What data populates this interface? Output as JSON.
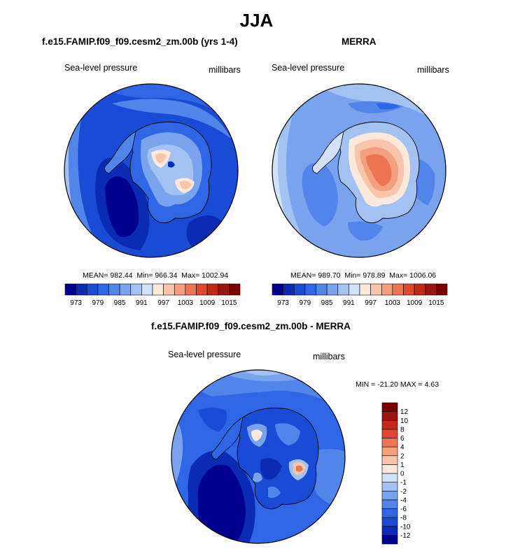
{
  "page_title": "JJA",
  "chart_data": [
    {
      "type": "heatmap",
      "projection": "south polar stereographic",
      "title": "f.e15.FAMIP.f09_f09.cesm2_zm.00b (yrs 1-4)",
      "left_label": "Sea-level pressure",
      "right_label": "millibars",
      "stats": {
        "mean_text": "MEAN= 982.44",
        "min_text": "Min= 966.34",
        "max_text": "Max= 1002.94",
        "mean": 982.44,
        "min": 966.34,
        "max": 1002.94
      },
      "colorbar": {
        "orientation": "horizontal",
        "levels": [
          973,
          976,
          979,
          982,
          985,
          988,
          991,
          994,
          997,
          1000,
          1003,
          1006,
          1009,
          1012,
          1015
        ],
        "tick_labels": [
          "973",
          "979",
          "985",
          "991",
          "997",
          "1003",
          "1009",
          "1015"
        ],
        "colors": [
          "#00008f",
          "#0a2bb4",
          "#1a4bd4",
          "#2e66e6",
          "#5285ea",
          "#7aa3ee",
          "#a3c2f2",
          "#d1e1f8",
          "#fde8dc",
          "#f8c5aa",
          "#f3a07e",
          "#ec7553",
          "#e0472e",
          "#c02a17",
          "#9a150d",
          "#7d0000"
        ]
      }
    },
    {
      "type": "heatmap",
      "projection": "south polar stereographic",
      "title": "MERRA",
      "left_label": "Sea-level pressure",
      "right_label": "millibars",
      "stats": {
        "mean_text": "MEAN= 989.70",
        "min_text": "Min= 978.89",
        "max_text": "Max= 1006.06",
        "mean": 989.7,
        "min": 978.89,
        "max": 1006.06
      },
      "colorbar": {
        "orientation": "horizontal",
        "levels": [
          973,
          976,
          979,
          982,
          985,
          988,
          991,
          994,
          997,
          1000,
          1003,
          1006,
          1009,
          1012,
          1015
        ],
        "tick_labels": [
          "973",
          "979",
          "985",
          "991",
          "997",
          "1003",
          "1009",
          "1015"
        ],
        "colors": [
          "#00008f",
          "#0a2bb4",
          "#1a4bd4",
          "#2e66e6",
          "#5285ea",
          "#7aa3ee",
          "#a3c2f2",
          "#d1e1f8",
          "#fde8dc",
          "#f8c5aa",
          "#f3a07e",
          "#ec7553",
          "#e0472e",
          "#c02a17",
          "#9a150d",
          "#7d0000"
        ]
      }
    },
    {
      "type": "heatmap",
      "projection": "south polar stereographic",
      "title": "f.e15.FAMIP.f09_f09.cesm2_zm.00b - MERRA",
      "left_label": "Sea-level pressure",
      "right_label": "millibars",
      "stats": {
        "min_max_text": "MIN = -21.20 MAX =  4.63",
        "min": -21.2,
        "max": 4.63
      },
      "colorbar": {
        "orientation": "vertical",
        "levels": [
          -12,
          -10,
          -8,
          -6,
          -4,
          -2,
          -1,
          0,
          1,
          2,
          4,
          6,
          8,
          10,
          12
        ],
        "tick_labels": [
          "-12",
          "-10",
          "-8",
          "-6",
          "-4",
          "-2",
          "-1",
          "0",
          "1",
          "2",
          "4",
          "6",
          "8",
          "10",
          "12"
        ],
        "colors": [
          "#00008f",
          "#0a2bb4",
          "#1a4bd4",
          "#2e66e6",
          "#5285ea",
          "#7aa3ee",
          "#a3c2f2",
          "#d1e1f8",
          "#fde8dc",
          "#f8c5aa",
          "#f3a07e",
          "#ec7553",
          "#e0472e",
          "#c02a17",
          "#9a150d",
          "#7d0000"
        ]
      }
    }
  ]
}
